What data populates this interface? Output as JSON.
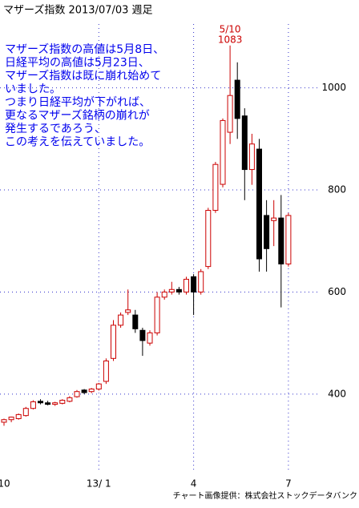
{
  "chart_data": {
    "type": "candlestick",
    "title": "マザーズ指数  2013/07/03  週足",
    "annotation": [
      "マザーズ指数の高値は5月8日、",
      "日経平均の高値は5月23日、",
      "マザーズ指数は既に崩れ始めて",
      "いました。",
      "つまり日経平均が下がれば、",
      "更なるマザーズ銘柄の崩れが",
      "発生するであろう、",
      "この考えを伝えていました。"
    ],
    "peak": {
      "index": 31,
      "label": "5/10",
      "value": 1083
    },
    "credit": "チャート画像提供：株式会社ストックデータバンク",
    "categories": [
      "10",
      null,
      null,
      null,
      null,
      null,
      null,
      null,
      null,
      null,
      null,
      null,
      null,
      "13/ 1",
      null,
      null,
      null,
      null,
      null,
      null,
      null,
      null,
      null,
      null,
      null,
      null,
      "4",
      null,
      null,
      null,
      null,
      null,
      null,
      null,
      null,
      null,
      null,
      null,
      null,
      "7"
    ],
    "open": [
      345,
      350,
      352,
      358,
      372,
      386,
      383,
      380,
      382,
      386,
      395,
      408,
      405,
      410,
      425,
      470,
      535,
      560,
      555,
      525,
      500,
      520,
      590,
      600,
      605,
      600,
      630,
      600,
      650,
      760,
      811,
      913,
      1015,
      945,
      840,
      880,
      750,
      740,
      745,
      655
    ],
    "high": [
      352,
      356,
      362,
      375,
      388,
      390,
      387,
      385,
      390,
      396,
      408,
      410,
      412,
      422,
      470,
      545,
      560,
      605,
      565,
      530,
      525,
      600,
      605,
      620,
      610,
      630,
      635,
      645,
      765,
      855,
      940,
      1083,
      1050,
      960,
      910,
      900,
      780,
      780,
      790,
      755
    ],
    "low": [
      338,
      345,
      350,
      356,
      370,
      380,
      378,
      377,
      380,
      384,
      393,
      400,
      402,
      407,
      420,
      465,
      530,
      555,
      520,
      475,
      495,
      515,
      585,
      595,
      595,
      595,
      555,
      595,
      645,
      755,
      805,
      890,
      900,
      780,
      810,
      640,
      640,
      690,
      570,
      650
    ],
    "close": [
      350,
      355,
      360,
      372,
      385,
      383,
      380,
      383,
      388,
      393,
      405,
      403,
      410,
      420,
      465,
      535,
      555,
      565,
      528,
      505,
      520,
      590,
      600,
      605,
      600,
      625,
      600,
      640,
      760,
      850,
      936,
      985,
      940,
      840,
      890,
      665,
      685,
      745,
      655,
      750
    ],
    "up_color": "#cc0000",
    "down_color": "#000000",
    "ylim": [
      246,
      1125
    ],
    "yticks": [
      400,
      600,
      800,
      1000
    ],
    "grid": true
  }
}
